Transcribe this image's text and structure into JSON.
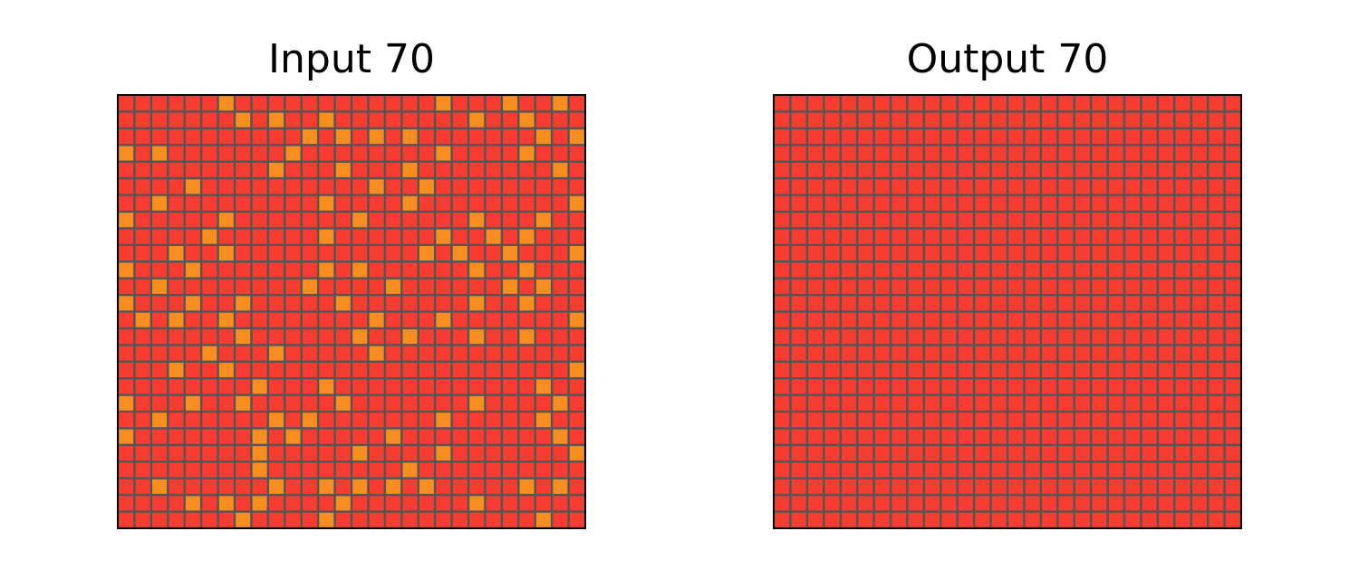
{
  "colors": {
    "background_cell": "#f93c31",
    "highlight_cell": "#f98d1f",
    "grid_line": "#555555",
    "frame": "#000000"
  },
  "grid_size": {
    "rows": 26,
    "cols": 28
  },
  "panels": [
    {
      "title": "Input 70",
      "highlight_cells": [
        [
          0,
          6
        ],
        [
          0,
          19
        ],
        [
          0,
          23
        ],
        [
          0,
          26
        ],
        [
          1,
          7
        ],
        [
          1,
          9
        ],
        [
          1,
          12
        ],
        [
          1,
          21
        ],
        [
          1,
          24
        ],
        [
          2,
          11
        ],
        [
          2,
          13
        ],
        [
          2,
          15
        ],
        [
          2,
          17
        ],
        [
          2,
          25
        ],
        [
          2,
          27
        ],
        [
          3,
          0
        ],
        [
          3,
          2
        ],
        [
          3,
          10
        ],
        [
          3,
          19
        ],
        [
          3,
          24
        ],
        [
          4,
          9
        ],
        [
          4,
          13
        ],
        [
          4,
          17
        ],
        [
          4,
          26
        ],
        [
          5,
          4
        ],
        [
          5,
          15
        ],
        [
          5,
          18
        ],
        [
          6,
          2
        ],
        [
          6,
          12
        ],
        [
          6,
          17
        ],
        [
          6,
          27
        ],
        [
          7,
          0
        ],
        [
          7,
          6
        ],
        [
          7,
          14
        ],
        [
          7,
          21
        ],
        [
          7,
          25
        ],
        [
          8,
          5
        ],
        [
          8,
          12
        ],
        [
          8,
          19
        ],
        [
          8,
          22
        ],
        [
          8,
          24
        ],
        [
          9,
          3
        ],
        [
          9,
          6
        ],
        [
          9,
          18
        ],
        [
          9,
          20
        ],
        [
          9,
          23
        ],
        [
          9,
          27
        ],
        [
          10,
          0
        ],
        [
          10,
          4
        ],
        [
          10,
          12
        ],
        [
          10,
          14
        ],
        [
          10,
          21
        ],
        [
          10,
          24
        ],
        [
          11,
          2
        ],
        [
          11,
          11
        ],
        [
          11,
          16
        ],
        [
          11,
          23
        ],
        [
          11,
          25
        ],
        [
          12,
          0
        ],
        [
          12,
          4
        ],
        [
          12,
          7
        ],
        [
          12,
          13
        ],
        [
          12,
          21
        ],
        [
          12,
          24
        ],
        [
          13,
          1
        ],
        [
          13,
          3
        ],
        [
          13,
          6
        ],
        [
          13,
          15
        ],
        [
          13,
          19
        ],
        [
          13,
          27
        ],
        [
          14,
          7
        ],
        [
          14,
          14
        ],
        [
          14,
          17
        ],
        [
          14,
          21
        ],
        [
          14,
          24
        ],
        [
          15,
          5
        ],
        [
          15,
          9
        ],
        [
          15,
          15
        ],
        [
          16,
          3
        ],
        [
          16,
          6
        ],
        [
          16,
          27
        ],
        [
          17,
          8
        ],
        [
          17,
          12
        ],
        [
          17,
          25
        ],
        [
          18,
          0
        ],
        [
          18,
          4
        ],
        [
          18,
          7
        ],
        [
          18,
          13
        ],
        [
          18,
          21
        ],
        [
          18,
          26
        ],
        [
          19,
          2
        ],
        [
          19,
          9
        ],
        [
          19,
          11
        ],
        [
          19,
          19
        ],
        [
          19,
          25
        ],
        [
          20,
          0
        ],
        [
          20,
          8
        ],
        [
          20,
          10
        ],
        [
          20,
          16
        ],
        [
          20,
          26
        ],
        [
          21,
          8
        ],
        [
          21,
          14
        ],
        [
          21,
          19
        ],
        [
          21,
          27
        ],
        [
          22,
          8
        ],
        [
          22,
          17
        ],
        [
          23,
          2
        ],
        [
          23,
          9
        ],
        [
          23,
          12
        ],
        [
          23,
          14
        ],
        [
          23,
          16
        ],
        [
          23,
          18
        ],
        [
          23,
          24
        ],
        [
          23,
          26
        ],
        [
          24,
          4
        ],
        [
          24,
          6
        ],
        [
          24,
          8
        ],
        [
          24,
          13
        ],
        [
          24,
          21
        ],
        [
          25,
          7
        ],
        [
          25,
          12
        ],
        [
          25,
          25
        ]
      ]
    },
    {
      "title": "Output 70",
      "highlight_cells": []
    }
  ]
}
